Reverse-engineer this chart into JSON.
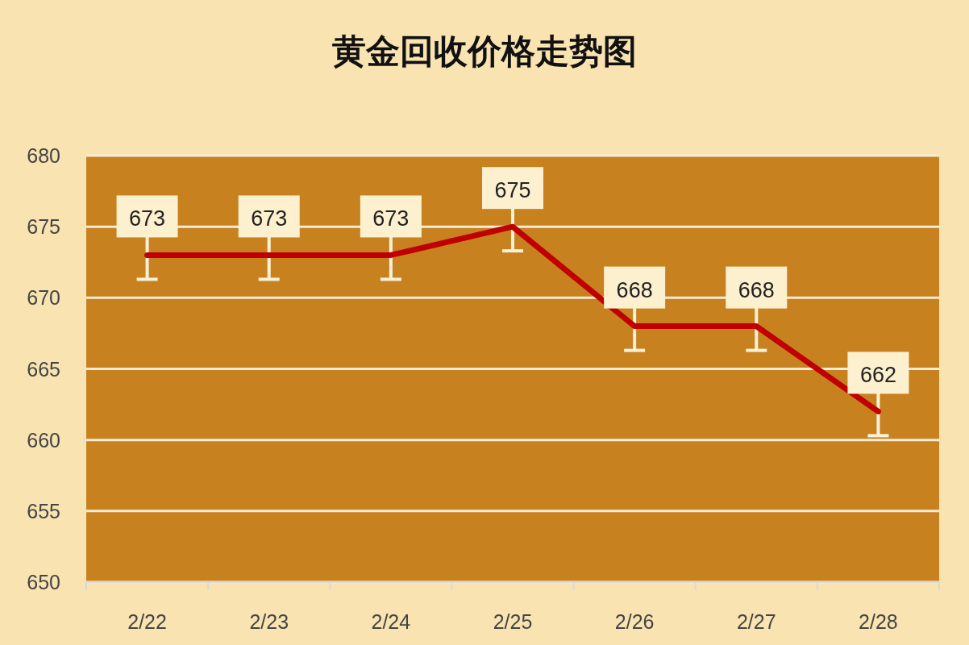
{
  "chart_data": {
    "type": "line",
    "title": "黄金回收价格走势图",
    "categories": [
      "2/22",
      "2/23",
      "2/24",
      "2/25",
      "2/26",
      "2/27",
      "2/28"
    ],
    "series": [
      {
        "color": "#c00000",
        "values": [
          673,
          673,
          673,
          675,
          668,
          668,
          662
        ],
        "errors": [
          1.7,
          1.7,
          1.7,
          1.7,
          1.7,
          1.7,
          1.7
        ]
      }
    ],
    "ylim": [
      650,
      680
    ],
    "yticks": [
      650,
      655,
      660,
      665,
      670,
      675,
      680
    ],
    "grid": "y",
    "data_labels": true
  }
}
